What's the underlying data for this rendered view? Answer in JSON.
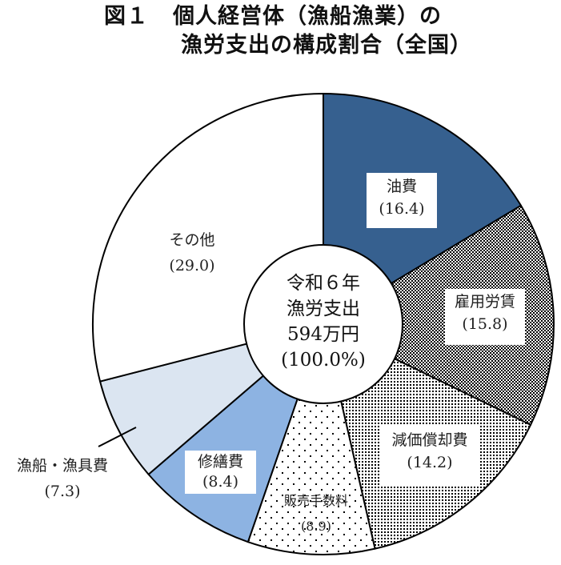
{
  "title": {
    "figure_no": "図１",
    "line1": "個人経営体（漁船漁業）の",
    "line2": "漁労支出の構成割合（全国）"
  },
  "center": {
    "line1": "令和６年",
    "line2": "漁労支出",
    "line3": "594万円",
    "line4": "(100.0%)"
  },
  "labels": {
    "fuel": {
      "name": "油費",
      "value": "(16.4)"
    },
    "wages": {
      "name": "雇用労賃",
      "value": "(15.8)"
    },
    "depreciation": {
      "name": "減価償却費",
      "value": "(14.2)"
    },
    "sales_fee": {
      "name": "販売手数料",
      "value": "(8.9)"
    },
    "repair": {
      "name": "修繕費",
      "value": "(8.4)"
    },
    "boat_gear": {
      "name": "漁船・漁具費",
      "value": "(7.3)"
    },
    "other": {
      "name": "その他",
      "value": "(29.0)"
    }
  },
  "colors": {
    "fuel": "#36608f",
    "repair": "#8db3e2",
    "boat_gear": "#dbe5f1",
    "other": "#ffffff",
    "outline": "#000000"
  },
  "chart_data": {
    "type": "pie",
    "donut": true,
    "title": "図１ 個人経営体（漁船漁業）の漁労支出の構成割合（全国）",
    "center_label": "令和６年 漁労支出 594万円 (100.0%)",
    "unit": "%",
    "total": "594万円",
    "start_angle": "12 o'clock",
    "direction": "clockwise",
    "categories": [
      "油費",
      "雇用労賃",
      "減価償却費",
      "販売手数料",
      "修繕費",
      "漁船・漁具費",
      "その他"
    ],
    "values": [
      16.4,
      15.8,
      14.2,
      8.9,
      8.4,
      7.3,
      29.0
    ],
    "fills": [
      "solid dark blue",
      "dense checker pattern",
      "fine dot pattern",
      "sparse dot pattern",
      "solid medium blue",
      "solid light blue",
      "white"
    ]
  }
}
